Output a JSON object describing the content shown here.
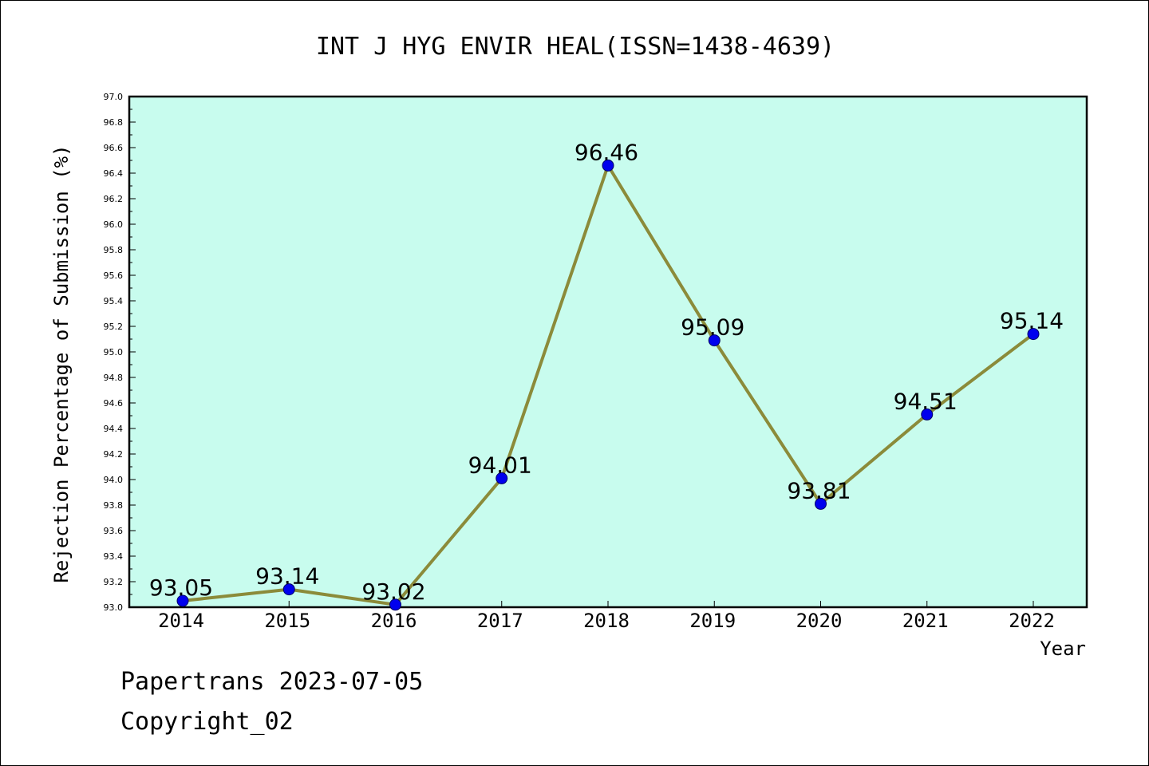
{
  "footer": {
    "line1": "Papertrans 2023-07-05",
    "line2": "Copyright_02"
  },
  "colors": {
    "plot_background": "#c8fcee",
    "line": "#8b8b3a",
    "marker": "#0000ee",
    "axis": "#000000"
  },
  "chart_data": {
    "type": "line",
    "title": "INT J HYG ENVIR HEAL(ISSN=1438-4639)",
    "xlabel": "Year",
    "ylabel": "Rejection Percentage of Submission (%)",
    "ylim": [
      93.0,
      97.0
    ],
    "ytick_step": 0.2,
    "ytick_labels": [
      "93.0",
      "93.2",
      "93.4",
      "93.6",
      "93.8",
      "94.0",
      "94.2",
      "94.4",
      "94.6",
      "94.8",
      "95.0",
      "95.2",
      "95.4",
      "95.6",
      "95.8",
      "96.0",
      "96.2",
      "96.4",
      "96.6",
      "96.8",
      "97.0"
    ],
    "grid": false,
    "categories": [
      "2014",
      "2015",
      "2016",
      "2017",
      "2018",
      "2019",
      "2020",
      "2021",
      "2022"
    ],
    "values": [
      93.05,
      93.14,
      93.02,
      94.01,
      96.46,
      95.09,
      93.81,
      94.51,
      95.14
    ],
    "data_labels": [
      "93.05",
      "93.14",
      "93.02",
      "94.01",
      "96.46",
      "95.09",
      "93.81",
      "94.51",
      "95.14"
    ]
  }
}
